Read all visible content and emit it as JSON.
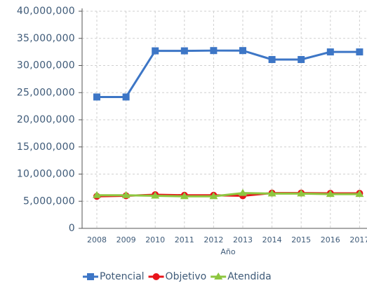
{
  "chart_data": {
    "type": "line",
    "x_label": "Año",
    "categories": [
      "2008",
      "2009",
      "2010",
      "2011",
      "2012",
      "2013",
      "2014",
      "2015",
      "2016",
      "2017"
    ],
    "series": [
      {
        "name": "Potencial",
        "color": "#3d76c6",
        "marker": "square",
        "values": [
          24200000,
          24200000,
          32700000,
          32700000,
          32750000,
          32750000,
          31100000,
          31100000,
          32500000,
          32500000
        ]
      },
      {
        "name": "Objetivo",
        "color": "#e8141b",
        "marker": "circle",
        "values": [
          5900000,
          6000000,
          6200000,
          6100000,
          6100000,
          6000000,
          6500000,
          6500000,
          6450000,
          6450000
        ]
      },
      {
        "name": "Atendida",
        "color": "#8dc63f",
        "marker": "triangle",
        "values": [
          6100000,
          6100000,
          6000000,
          5900000,
          5900000,
          6500000,
          6400000,
          6400000,
          6300000,
          6300000
        ]
      }
    ],
    "ylim": [
      0,
      40000000
    ],
    "yticks": [
      0,
      {
        "value": 5000000,
        "label": "5,000,000"
      },
      {
        "value": 10000000,
        "label": "10,000,000"
      },
      {
        "value": 15000000,
        "label": "15,000,000"
      },
      {
        "value": 20000000,
        "label": "20,000,000"
      },
      {
        "value": 25000000,
        "label": "25,000,000"
      },
      {
        "value": 30000000,
        "label": "30,000,000"
      },
      {
        "value": 35000000,
        "label": "35,000,000"
      },
      {
        "value": 40000000,
        "label": "40,000,000"
      }
    ],
    "grid": true,
    "legend": "bottom"
  }
}
